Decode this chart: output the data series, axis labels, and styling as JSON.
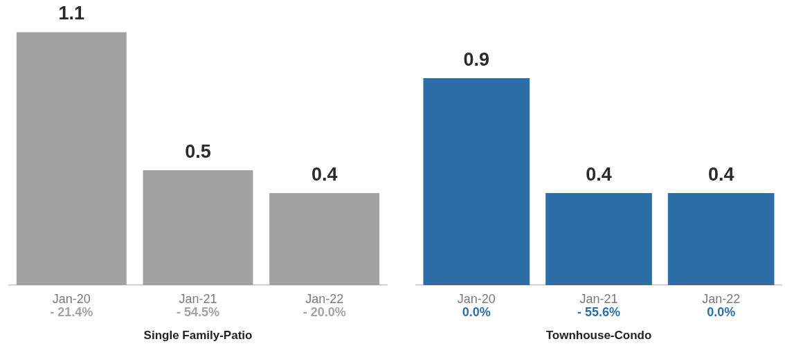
{
  "chart_data": [
    {
      "type": "bar",
      "xlabel": "Single Family-Patio",
      "categories": [
        "Jan-20",
        "Jan-21",
        "Jan-22"
      ],
      "values": [
        1.1,
        0.5,
        0.4
      ],
      "color": "#a3a3a3",
      "data_labels": true,
      "tick_labels": "x",
      "annotations": [
        "- 21.4%",
        "- 54.5%",
        "- 20.0%"
      ]
    },
    {
      "type": "bar",
      "xlabel": "Townhouse-Condo",
      "categories": [
        "Jan-20",
        "Jan-21",
        "Jan-22"
      ],
      "values": [
        0.9,
        0.4,
        0.4
      ],
      "color": "#2e6ea6",
      "data_labels": true,
      "tick_labels": "x",
      "annotations": [
        "0.0%",
        "- 55.6%",
        "0.0%"
      ]
    }
  ]
}
